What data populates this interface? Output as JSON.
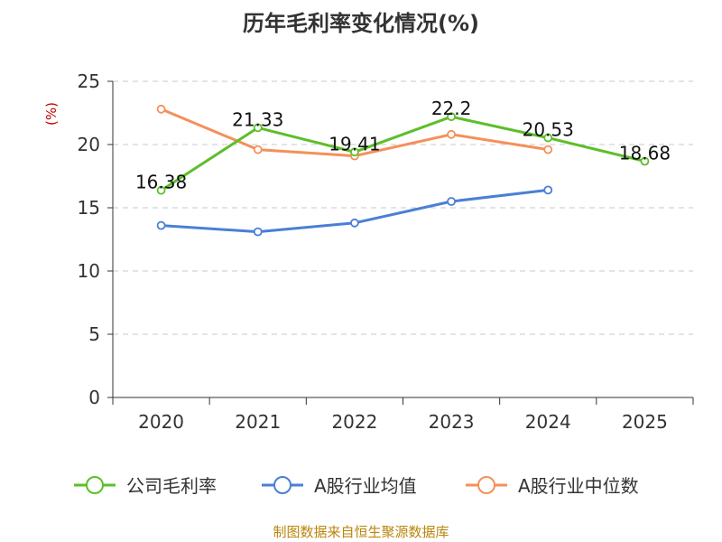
{
  "chart_data": {
    "type": "line",
    "title": "历年毛利率变化情况(%)",
    "ylabel": "(%)",
    "xlabel": "",
    "categories": [
      "2020",
      "2021",
      "2022",
      "2023",
      "2024",
      "2025"
    ],
    "ylim": [
      0,
      25
    ],
    "yticks": [
      "0",
      "5",
      "10",
      "15",
      "20",
      "25"
    ],
    "grid": true,
    "legend_position": "bottom",
    "series": [
      {
        "name": "公司毛利率",
        "color": "#5dbf2a",
        "values": [
          16.38,
          21.33,
          19.41,
          22.2,
          20.53,
          18.68
        ],
        "labels": [
          "16.38",
          "21.33",
          "19.41",
          "22.2",
          "20.53",
          "18.68"
        ]
      },
      {
        "name": "A股行业均值",
        "color": "#4a7fd6",
        "values": [
          13.6,
          13.1,
          13.8,
          15.5,
          16.4,
          null
        ]
      },
      {
        "name": "A股行业中位数",
        "color": "#f5905a",
        "values": [
          22.8,
          19.6,
          19.1,
          20.8,
          19.6,
          null
        ]
      }
    ]
  },
  "source": "制图数据来自恒生聚源数据库"
}
